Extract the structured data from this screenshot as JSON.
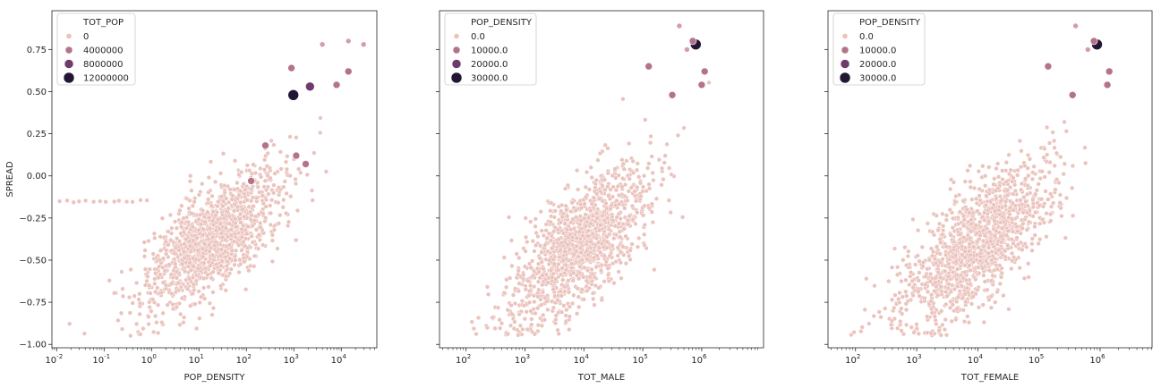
{
  "chart_data": [
    {
      "type": "scatter",
      "xlabel": "POP_DENSITY",
      "ylabel": "SPREAD",
      "xscale": "log",
      "xlim_log10": [
        -2.1,
        4.75
      ],
      "ylim": [
        -1.02,
        0.98
      ],
      "x_ticks": [
        {
          "exp": -2,
          "label": "-2"
        },
        {
          "exp": -1,
          "label": "-1"
        },
        {
          "exp": 0,
          "label": "0"
        },
        {
          "exp": 1,
          "label": "1"
        },
        {
          "exp": 2,
          "label": "2"
        },
        {
          "exp": 3,
          "label": "3"
        },
        {
          "exp": 4,
          "label": "4"
        }
      ],
      "y_ticks": [
        0.75,
        0.5,
        0.25,
        0.0,
        -0.25,
        -0.5,
        -0.75,
        -1.0
      ],
      "y_tick_labels": [
        "0.75",
        "0.50",
        "0.25",
        "0.00",
        "−0.25",
        "−0.50",
        "−0.75",
        "−1.00"
      ],
      "legend": {
        "title": "TOT_POP",
        "placement": "top-left",
        "entries": [
          {
            "label": "0",
            "color": "#ebc3bd",
            "size": 3
          },
          {
            "label": "4000000",
            "color": "#b57389",
            "size": 4
          },
          {
            "label": "8000000",
            "color": "#6e3b6a",
            "size": 5
          },
          {
            "label": "12000000",
            "color": "#231634",
            "size": 6
          }
        ]
      },
      "bulk": {
        "x_center_log10": 1.3,
        "x_sd": 0.75,
        "slope": 0.19,
        "intercept": -0.62,
        "noise": 0.15,
        "count": 1300,
        "color": "#ebc3bd"
      },
      "highlight_points": [
        {
          "xlog": 2.99,
          "y": 0.48,
          "color": "#231634",
          "size": 6
        },
        {
          "xlog": 3.34,
          "y": 0.53,
          "color": "#6e3b6a",
          "size": 5
        },
        {
          "xlog": 3.05,
          "y": 0.12,
          "color": "#b57389",
          "size": 4
        },
        {
          "xlog": 3.25,
          "y": 0.07,
          "color": "#b57389",
          "size": 4
        },
        {
          "xlog": 2.4,
          "y": 0.18,
          "color": "#b57389",
          "size": 4
        },
        {
          "xlog": 2.95,
          "y": 0.64,
          "color": "#b57389",
          "size": 4
        },
        {
          "xlog": 4.15,
          "y": 0.62,
          "color": "#b57389",
          "size": 4
        },
        {
          "xlog": 3.9,
          "y": 0.54,
          "color": "#b57389",
          "size": 4
        },
        {
          "xlog": 4.15,
          "y": 0.8,
          "color": "#d39da5",
          "size": 3
        },
        {
          "xlog": 3.6,
          "y": 0.78,
          "color": "#d39da5",
          "size": 3
        },
        {
          "xlog": 4.47,
          "y": 0.78,
          "color": "#d39da5",
          "size": 3
        },
        {
          "xlog": 2.1,
          "y": -0.03,
          "color": "#b57389",
          "size": 4
        }
      ]
    },
    {
      "type": "scatter",
      "xlabel": "TOT_MALE",
      "ylabel": "",
      "xscale": "log",
      "xlim_log10": [
        1.55,
        7.05
      ],
      "ylim": [
        -1.02,
        0.98
      ],
      "x_ticks": [
        {
          "exp": 2,
          "label": "2"
        },
        {
          "exp": 3,
          "label": "3"
        },
        {
          "exp": 4,
          "label": "4"
        },
        {
          "exp": 5,
          "label": "5"
        },
        {
          "exp": 6,
          "label": "6"
        }
      ],
      "y_ticks": [
        0.75,
        0.5,
        0.25,
        0.0,
        -0.25,
        -0.5,
        -0.75,
        -1.0
      ],
      "legend": {
        "title": "POP_DENSITY",
        "placement": "top-left",
        "entries": [
          {
            "label": "0.0",
            "color": "#ebc3bd",
            "size": 3
          },
          {
            "label": "10000.0",
            "color": "#b57389",
            "size": 4
          },
          {
            "label": "20000.0",
            "color": "#6e3b6a",
            "size": 5
          },
          {
            "label": "30000.0",
            "color": "#231634",
            "size": 6
          }
        ]
      },
      "bulk": {
        "x_center_log10": 3.95,
        "x_sd": 0.6,
        "slope": 0.27,
        "intercept": -1.47,
        "noise": 0.17,
        "count": 1300,
        "color": "#ebc3bd"
      },
      "highlight_points": [
        {
          "xlog": 5.9,
          "y": 0.78,
          "color": "#231634",
          "size": 6
        },
        {
          "xlog": 5.85,
          "y": 0.8,
          "color": "#b57389",
          "size": 4
        },
        {
          "xlog": 6.05,
          "y": 0.62,
          "color": "#b57389",
          "size": 4
        },
        {
          "xlog": 6.0,
          "y": 0.54,
          "color": "#b57389",
          "size": 4
        },
        {
          "xlog": 5.5,
          "y": 0.48,
          "color": "#b57389",
          "size": 4
        },
        {
          "xlog": 5.1,
          "y": 0.65,
          "color": "#b57389",
          "size": 4
        },
        {
          "xlog": 5.62,
          "y": 0.89,
          "color": "#d39da5",
          "size": 3
        },
        {
          "xlog": 5.75,
          "y": 0.75,
          "color": "#d39da5",
          "size": 3
        }
      ]
    },
    {
      "type": "scatter",
      "xlabel": "TOT_FEMALE",
      "ylabel": "",
      "xscale": "log",
      "xlim_log10": [
        1.55,
        6.85
      ],
      "ylim": [
        -1.02,
        0.98
      ],
      "x_ticks": [
        {
          "exp": 2,
          "label": "2"
        },
        {
          "exp": 3,
          "label": "3"
        },
        {
          "exp": 4,
          "label": "4"
        },
        {
          "exp": 5,
          "label": "5"
        },
        {
          "exp": 6,
          "label": "6"
        }
      ],
      "y_ticks": [
        0.75,
        0.5,
        0.25,
        0.0,
        -0.25,
        -0.5,
        -0.75,
        -1.0
      ],
      "legend": {
        "title": "POP_DENSITY",
        "placement": "top-left",
        "entries": [
          {
            "label": "0.0",
            "color": "#ebc3bd",
            "size": 3
          },
          {
            "label": "10000.0",
            "color": "#b57389",
            "size": 4
          },
          {
            "label": "20000.0",
            "color": "#6e3b6a",
            "size": 5
          },
          {
            "label": "30000.0",
            "color": "#231634",
            "size": 6
          }
        ]
      },
      "bulk": {
        "x_center_log10": 3.98,
        "x_sd": 0.6,
        "slope": 0.27,
        "intercept": -1.48,
        "noise": 0.17,
        "count": 1300,
        "color": "#ebc3bd"
      },
      "highlight_points": [
        {
          "xlog": 5.95,
          "y": 0.78,
          "color": "#231634",
          "size": 6
        },
        {
          "xlog": 5.9,
          "y": 0.8,
          "color": "#b57389",
          "size": 4
        },
        {
          "xlog": 6.15,
          "y": 0.62,
          "color": "#b57389",
          "size": 4
        },
        {
          "xlog": 6.12,
          "y": 0.54,
          "color": "#b57389",
          "size": 4
        },
        {
          "xlog": 5.55,
          "y": 0.48,
          "color": "#b57389",
          "size": 4
        },
        {
          "xlog": 5.15,
          "y": 0.65,
          "color": "#b57389",
          "size": 4
        },
        {
          "xlog": 5.6,
          "y": 0.89,
          "color": "#d39da5",
          "size": 3
        },
        {
          "xlog": 5.8,
          "y": 0.75,
          "color": "#d39da5",
          "size": 3
        }
      ]
    }
  ]
}
